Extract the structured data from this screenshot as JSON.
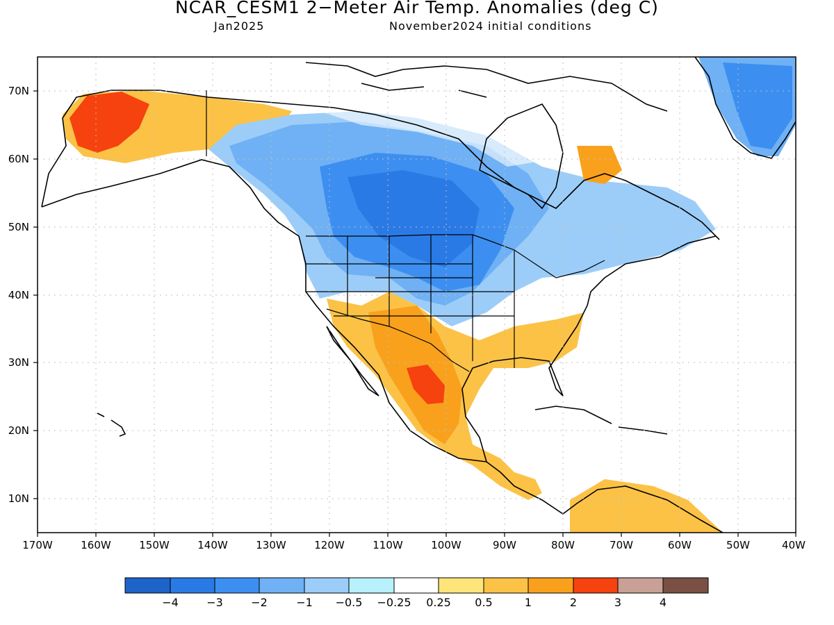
{
  "title": "NCAR_CESM1 2−Meter Air Temp. Anomalies (deg C)",
  "subtitle_left": "Jan2025",
  "subtitle_right": "November2024 initial conditions",
  "lat_labels": [
    "70N",
    "60N",
    "50N",
    "40N",
    "30N",
    "20N",
    "10N"
  ],
  "lon_labels": [
    "170W",
    "160W",
    "150W",
    "140W",
    "130W",
    "120W",
    "110W",
    "100W",
    "90W",
    "80W",
    "70W",
    "60W",
    "50W",
    "40W"
  ],
  "colorbar": {
    "colors": [
      "#1e64c8",
      "#2a7ae6",
      "#3c8ff0",
      "#6fb1f4",
      "#9ccdf8",
      "#b8f0fb",
      "#ffffff",
      "#fde57a",
      "#fbc246",
      "#f9a11c",
      "#f6420f",
      "#c8a095",
      "#7a5045"
    ],
    "tick_labels": [
      "−4",
      "−3",
      "−2",
      "−1",
      "−0.5",
      "−0.25",
      "0.25",
      "0.5",
      "1",
      "2",
      "3",
      "4"
    ]
  },
  "colors": {
    "land_outline": "#000000",
    "grid": "#bfbfbf"
  }
}
